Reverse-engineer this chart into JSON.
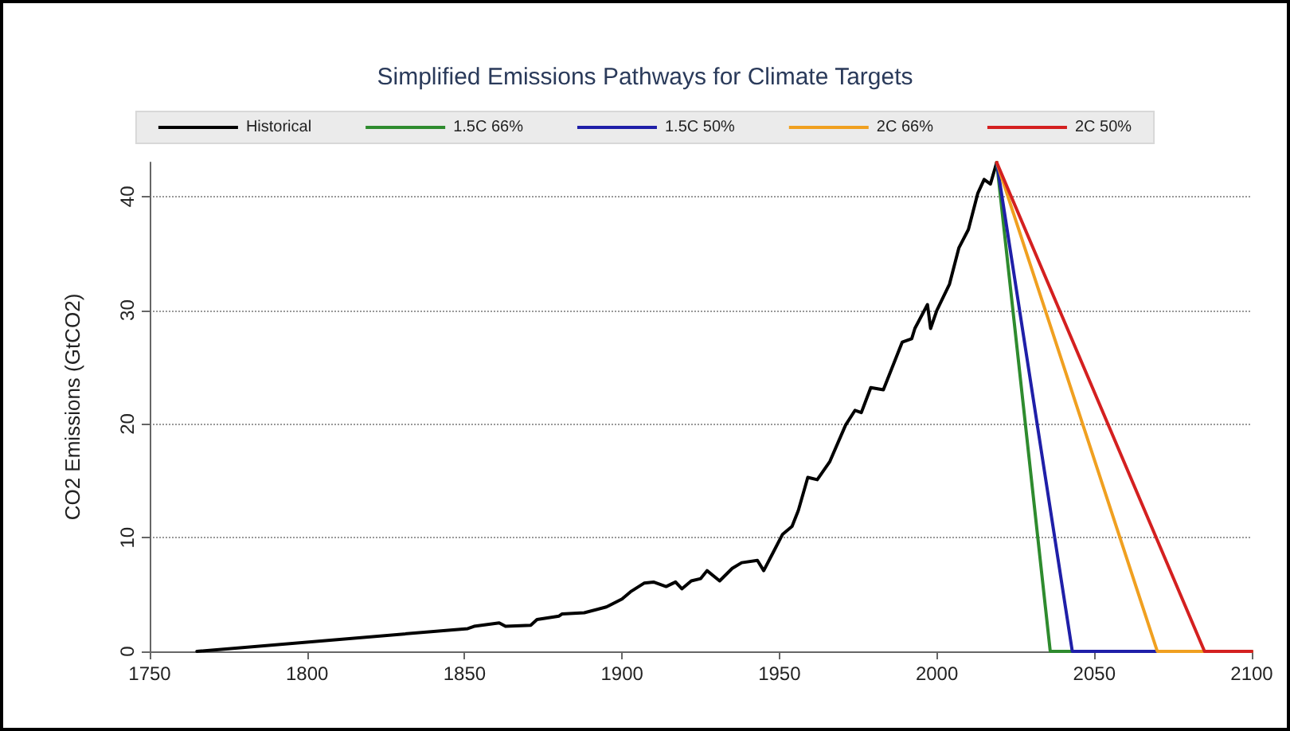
{
  "chart_data": {
    "type": "line",
    "title": "Simplified Emissions Pathways for Climate Targets",
    "ylabel": "CO2 Emissions (GtCO2)",
    "xlim": [
      1750,
      2100
    ],
    "xticks": [
      1750,
      1800,
      1850,
      1900,
      1950,
      2000,
      2050,
      2100
    ],
    "ylim": [
      0,
      43
    ],
    "yticks": [
      0,
      10,
      20,
      30,
      40
    ],
    "grid": "y",
    "legend": "top",
    "marker": "none",
    "line_style": "solid",
    "series": [
      {
        "name": "Historical",
        "color": "#000000",
        "x": [
          1765,
          1851,
          1853,
          1861,
          1863,
          1871,
          1873,
          1880,
          1881,
          1888,
          1895,
          1900,
          1903,
          1907,
          1910,
          1914,
          1917,
          1919,
          1922,
          1925,
          1927,
          1931,
          1935,
          1938,
          1943,
          1945,
          1948,
          1951,
          1954,
          1956,
          1959,
          1962,
          1966,
          1971,
          1974,
          1976,
          1979,
          1983,
          1989,
          1992,
          1993,
          1997,
          1998,
          2000,
          2004,
          2007,
          2010,
          2013,
          2015,
          2017,
          2019
        ],
        "values": [
          0,
          2.0,
          2.2,
          2.5,
          2.2,
          2.3,
          2.8,
          3.1,
          3.3,
          3.4,
          3.9,
          4.6,
          5.3,
          6.0,
          6.1,
          5.7,
          6.1,
          5.5,
          6.2,
          6.4,
          7.1,
          6.2,
          7.3,
          7.8,
          8.0,
          7.1,
          8.7,
          10.3,
          11.0,
          12.4,
          15.3,
          15.1,
          16.7,
          19.9,
          21.2,
          21.0,
          23.2,
          23.0,
          27.2,
          27.5,
          28.4,
          30.5,
          28.4,
          30.0,
          32.3,
          35.5,
          37.1,
          40.3,
          41.5,
          41.1,
          43.0
        ]
      },
      {
        "name": "1.5C 66%",
        "color": "#2e8b2e",
        "x": [
          2019,
          2036,
          2100
        ],
        "values": [
          43.0,
          0,
          0
        ]
      },
      {
        "name": "1.5C 50%",
        "color": "#1f1fa8",
        "x": [
          2019,
          2043,
          2100
        ],
        "values": [
          43.0,
          0,
          0
        ]
      },
      {
        "name": "2C 66%",
        "color": "#f0a020",
        "x": [
          2019,
          2070,
          2100
        ],
        "values": [
          43.0,
          0,
          0
        ]
      },
      {
        "name": "2C 50%",
        "color": "#d42020",
        "x": [
          2019,
          2085,
          2100
        ],
        "values": [
          43.0,
          0,
          0
        ]
      }
    ]
  }
}
